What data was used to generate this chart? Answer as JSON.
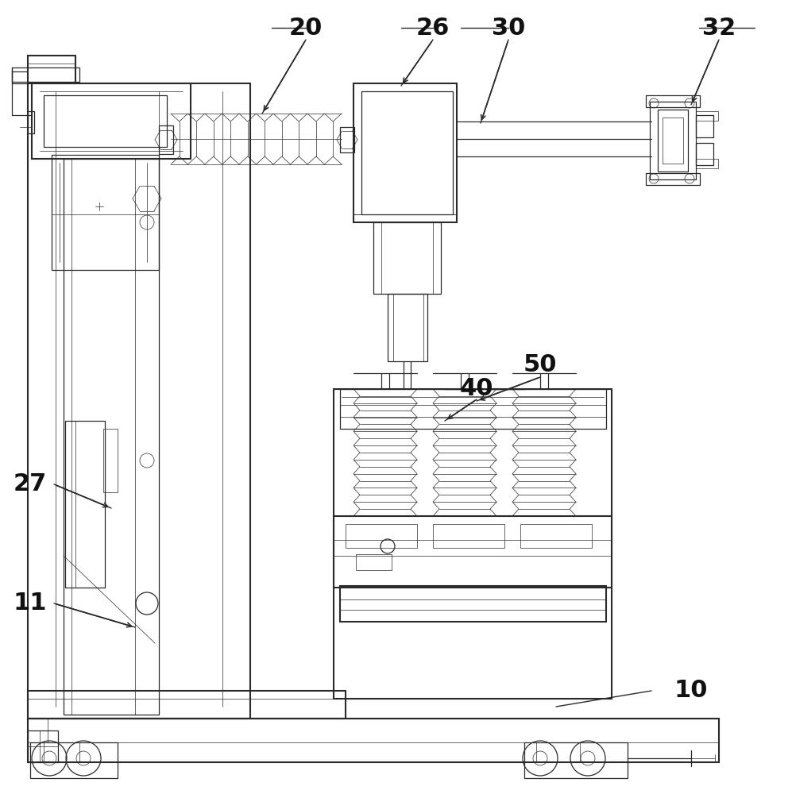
{
  "bg": "#ffffff",
  "lc": "#2a2a2a",
  "lc2": "#444444",
  "lw1": 1.5,
  "lw2": 0.9,
  "lw3": 0.5
}
